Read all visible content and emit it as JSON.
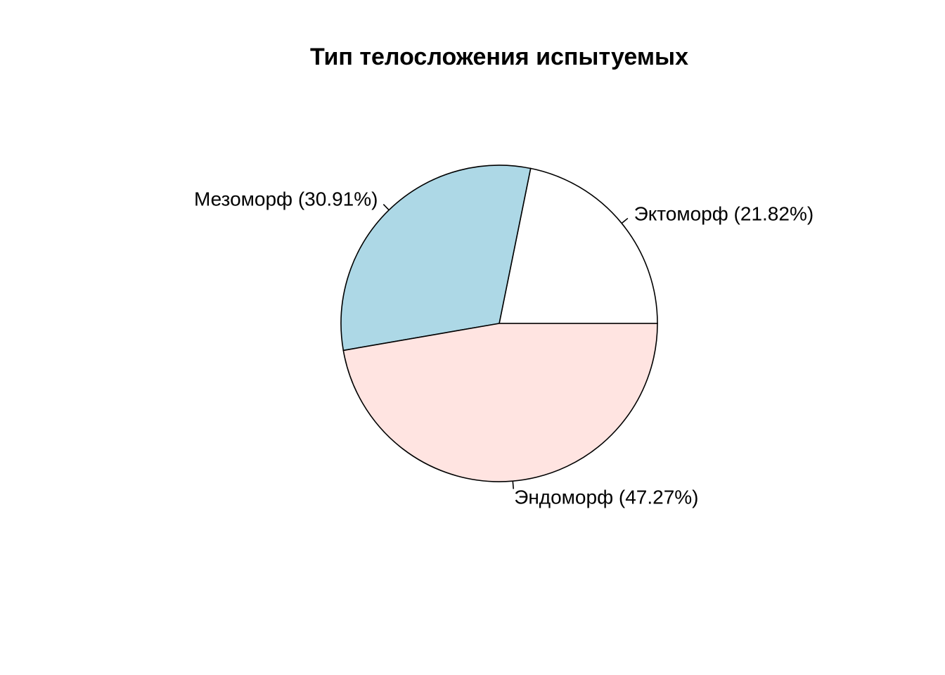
{
  "chart_data": {
    "type": "pie",
    "title": "Тип телосложения испытуемых",
    "slices": [
      {
        "label": "Эктоморф (21.82%)",
        "value": 21.82,
        "color": "#ffffff"
      },
      {
        "label": "Мезоморф (30.91%)",
        "value": 30.91,
        "color": "#add8e6"
      },
      {
        "label": "Эндоморф (47.27%)",
        "value": 47.27,
        "color": "#ffe4e1"
      }
    ],
    "start_angle_deg": 0,
    "direction": "counterclockwise"
  }
}
